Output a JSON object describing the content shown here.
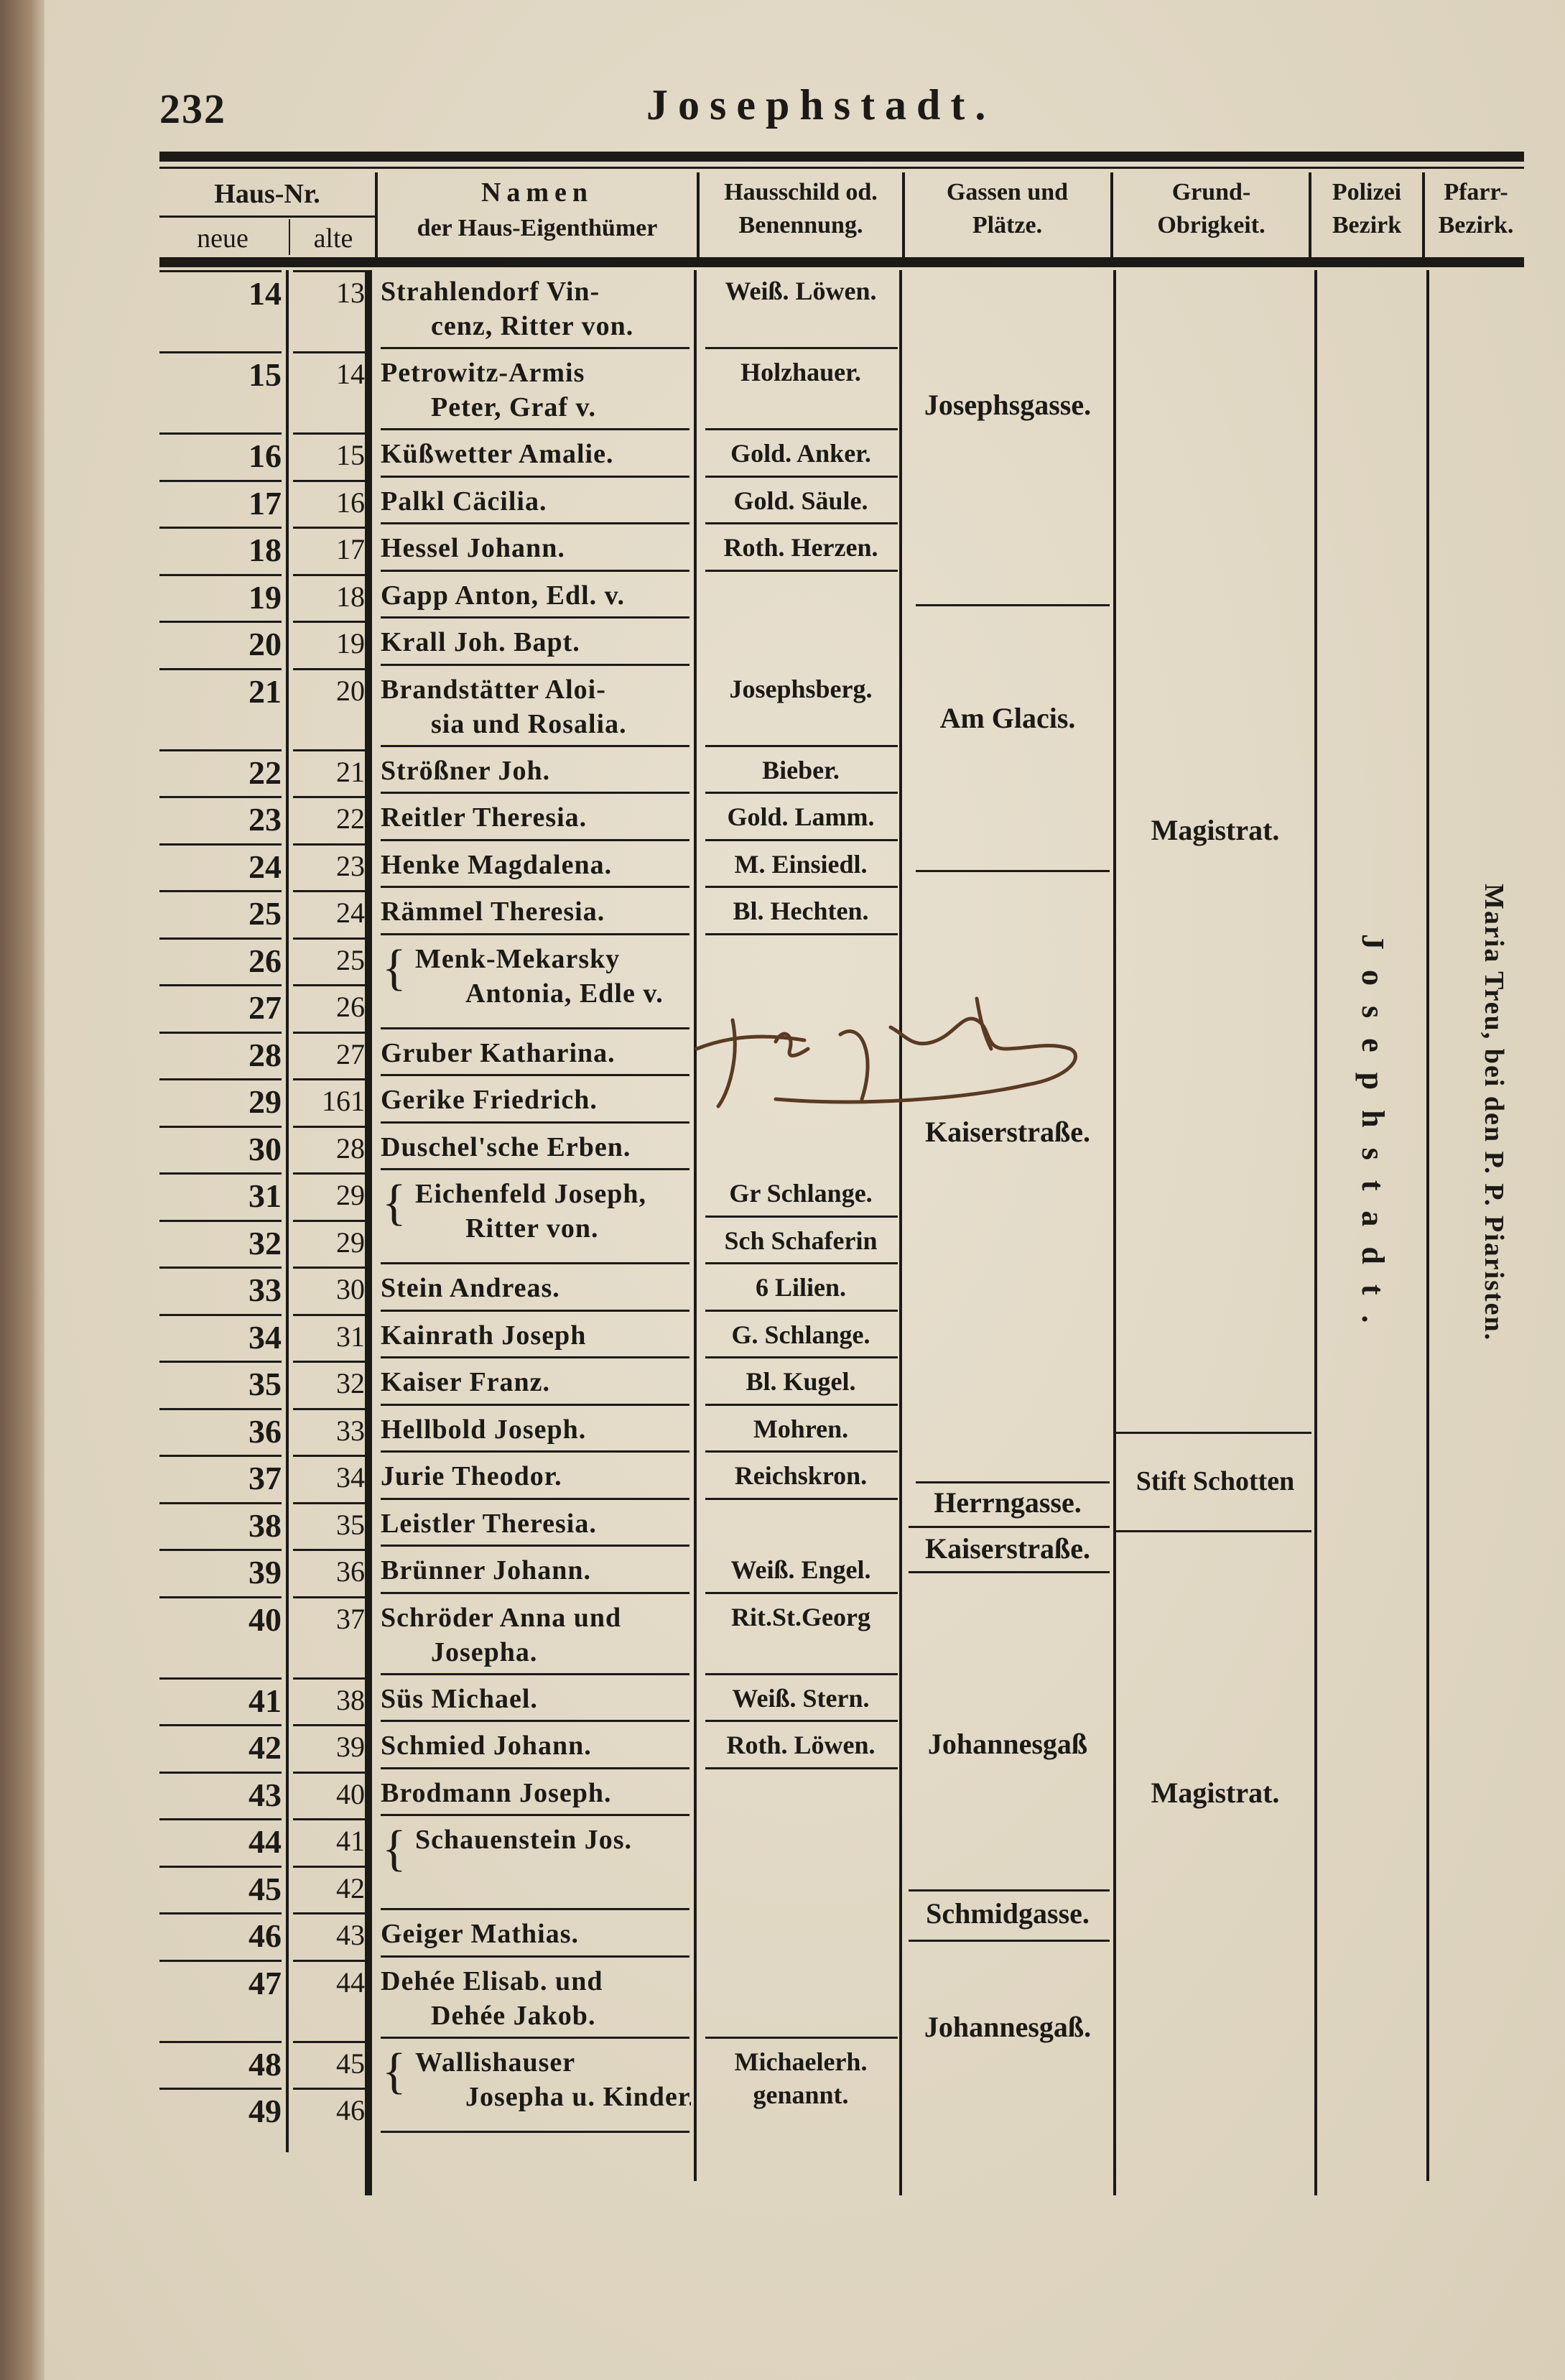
{
  "page": {
    "number": "232",
    "title": "Josephstadt."
  },
  "header": {
    "haus_nr": "Haus-Nr.",
    "neue": "neue",
    "alte": "alte",
    "namen_1": "Namen",
    "namen_2": "der Haus-Eigenthümer",
    "hausschild_1": "Hausschild od.",
    "hausschild_2": "Benennung.",
    "gassen_1": "Gassen und",
    "gassen_2": "Plätze.",
    "grund_1": "Grund-",
    "grund_2": "Obrigkeit.",
    "polizei_1": "Polizei",
    "polizei_2": "Bezirk",
    "pfarr_1": "Pfarr-",
    "pfarr_2": "Bezirk."
  },
  "rows": [
    {
      "neue": "14",
      "alte": "13",
      "name": [
        "Strahlendorf Vin-",
        "cenz, Ritter von."
      ],
      "sign": "Weiß. Löwen."
    },
    {
      "neue": "15",
      "alte": "14",
      "name": [
        "Petrowitz-Armis",
        "Peter, Graf v."
      ],
      "sign": "Holzhauer."
    },
    {
      "neue": "16",
      "alte": "15",
      "name": [
        "Küßwetter Amalie."
      ],
      "sign": "Gold. Anker."
    },
    {
      "neue": "17",
      "alte": "16",
      "name": [
        "Palkl Cäcilia."
      ],
      "sign": "Gold. Säule."
    },
    {
      "neue": "18",
      "alte": "17",
      "name": [
        "Hessel Johann."
      ],
      "sign": "Roth. Herzen."
    },
    {
      "neue": "19",
      "alte": "18",
      "name": [
        "Gapp Anton, Edl. v."
      ],
      "sign": ""
    },
    {
      "neue": "20",
      "alte": "19",
      "name": [
        "Krall Joh. Bapt."
      ],
      "sign": ""
    },
    {
      "neue": "21",
      "alte": "20",
      "name": [
        "Brandstätter Aloi-",
        "sia und Rosalia."
      ],
      "sign": "Josephsberg."
    },
    {
      "neue": "22",
      "alte": "21",
      "name": [
        "Strößner Joh."
      ],
      "sign": "Bieber."
    },
    {
      "neue": "23",
      "alte": "22",
      "name": [
        "Reitler Theresia."
      ],
      "sign": "Gold. Lamm."
    },
    {
      "neue": "24",
      "alte": "23",
      "name": [
        "Henke Magdalena."
      ],
      "sign": "M. Einsiedl."
    },
    {
      "neue": "25",
      "alte": "24",
      "name": [
        "Rämmel Theresia."
      ],
      "sign": "Bl. Hechten."
    },
    {
      "neue": "26",
      "alte": "25",
      "name": [
        "Menk-Mekarsky",
        "Antonia, Edle v."
      ],
      "span": 2,
      "sign": ""
    },
    {
      "neue": "27",
      "alte": "26",
      "sign": ""
    },
    {
      "neue": "28",
      "alte": "27",
      "name": [
        "Gruber Katharina."
      ],
      "sign": ""
    },
    {
      "neue": "29",
      "alte": "161",
      "name": [
        "Gerike Friedrich."
      ],
      "sign": ""
    },
    {
      "neue": "30",
      "alte": "28",
      "name": [
        "Duschel'sche Erben."
      ],
      "sign": ""
    },
    {
      "neue": "31",
      "alte": "29",
      "name": [
        "Eichenfeld Joseph,",
        "Ritter von."
      ],
      "span": 2,
      "sign": "Gr Schlange."
    },
    {
      "neue": "32",
      "alte": "29",
      "sign": "Sch Schaferin"
    },
    {
      "neue": "33",
      "alte": "30",
      "name": [
        "Stein Andreas."
      ],
      "sign": "6 Lilien."
    },
    {
      "neue": "34",
      "alte": "31",
      "name": [
        "Kainrath Joseph"
      ],
      "sign": "G. Schlange."
    },
    {
      "neue": "35",
      "alte": "32",
      "name": [
        "Kaiser Franz."
      ],
      "sign": "Bl. Kugel."
    },
    {
      "neue": "36",
      "alte": "33",
      "name": [
        "Hellbold Joseph."
      ],
      "sign": "Mohren."
    },
    {
      "neue": "37",
      "alte": "34",
      "name": [
        "Jurie Theodor."
      ],
      "sign": "Reichskron."
    },
    {
      "neue": "38",
      "alte": "35",
      "name": [
        "Leistler Theresia."
      ],
      "sign": ""
    },
    {
      "neue": "39",
      "alte": "36",
      "name": [
        "Brünner Johann."
      ],
      "sign": "Weiß. Engel."
    },
    {
      "neue": "40",
      "alte": "37",
      "name": [
        "Schröder Anna und",
        "Josepha."
      ],
      "sign": "Rit.St.Georg"
    },
    {
      "neue": "41",
      "alte": "38",
      "name": [
        "Süs Michael."
      ],
      "sign": "Weiß. Stern."
    },
    {
      "neue": "42",
      "alte": "39",
      "name": [
        "Schmied Johann."
      ],
      "sign": "Roth. Löwen."
    },
    {
      "neue": "43",
      "alte": "40",
      "name": [
        "Brodmann Joseph."
      ],
      "sign": ""
    },
    {
      "neue": "44",
      "alte": "41",
      "name": [
        "Schauenstein Jos."
      ],
      "span": 2,
      "sign": ""
    },
    {
      "neue": "45",
      "alte": "42",
      "sign": ""
    },
    {
      "neue": "46",
      "alte": "43",
      "name": [
        "Geiger Mathias."
      ],
      "sign": ""
    },
    {
      "neue": "47",
      "alte": "44",
      "name": [
        "Dehée Elisab. und",
        "Dehée Jakob."
      ],
      "sign": ""
    },
    {
      "neue": "48",
      "alte": "45",
      "name": [
        "Wallishauser",
        "Josepha u. Kinder."
      ],
      "span": 2,
      "sign": "Michaelerh. genannt.",
      "sign_span": 2
    },
    {
      "neue": "49",
      "alte": "46",
      "sign": ""
    }
  ],
  "gassen": [
    "Josephsgasse.",
    "Am Glacis.",
    "Kaiserstraße.",
    "Herrngasse.",
    "Kaiserstraße.",
    "Johannesgaß",
    "Schmidgasse.",
    "Johannesgaß."
  ],
  "grund": [
    "Magistrat.",
    "Stift Schotten",
    "Magistrat."
  ],
  "polizei": "Josephstadt.",
  "pfarr": "Maria Treu, bei den P. P. Piaristen.",
  "colors": {
    "paper": "#e2d9c6",
    "ink": "#1c1a17",
    "handwriting": "#5a3a22"
  }
}
